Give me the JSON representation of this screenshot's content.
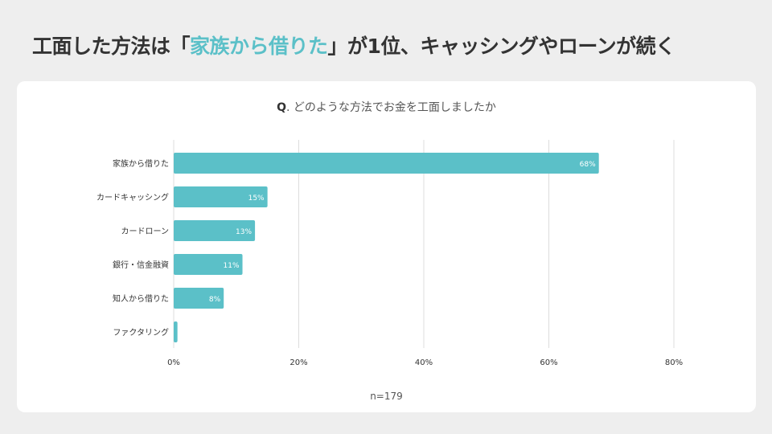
{
  "headline": {
    "before": "工面した方法は「",
    "highlight": "家族から借りた",
    "after": "」が1位、キャッシングやローンが続く"
  },
  "question": {
    "prefix": "Q",
    "text": ". どのような方法でお金を工面しましたか"
  },
  "footnote": "n=179",
  "colors": {
    "bar": "#5bc0c8",
    "highlight": "#5bc0c8",
    "grid": "#dddddd"
  },
  "chart_data": {
    "type": "bar",
    "orientation": "horizontal",
    "categories": [
      "家族から借りた",
      "カードキャッシング",
      "カードローン",
      "銀行・信金融資",
      "知人から借りた",
      "ファクタリング"
    ],
    "values": [
      68,
      15,
      13,
      11,
      8,
      0.6
    ],
    "value_labels": [
      "68%",
      "15%",
      "13%",
      "11%",
      "8%",
      ""
    ],
    "xlim": [
      0,
      80
    ],
    "xticks": [
      0,
      20,
      40,
      60,
      80
    ],
    "xtick_labels": [
      "0%",
      "20%",
      "40%",
      "60%",
      "80%"
    ],
    "grid": true,
    "title": "Q. どのような方法でお金を工面しましたか",
    "xlabel": "",
    "ylabel": ""
  }
}
